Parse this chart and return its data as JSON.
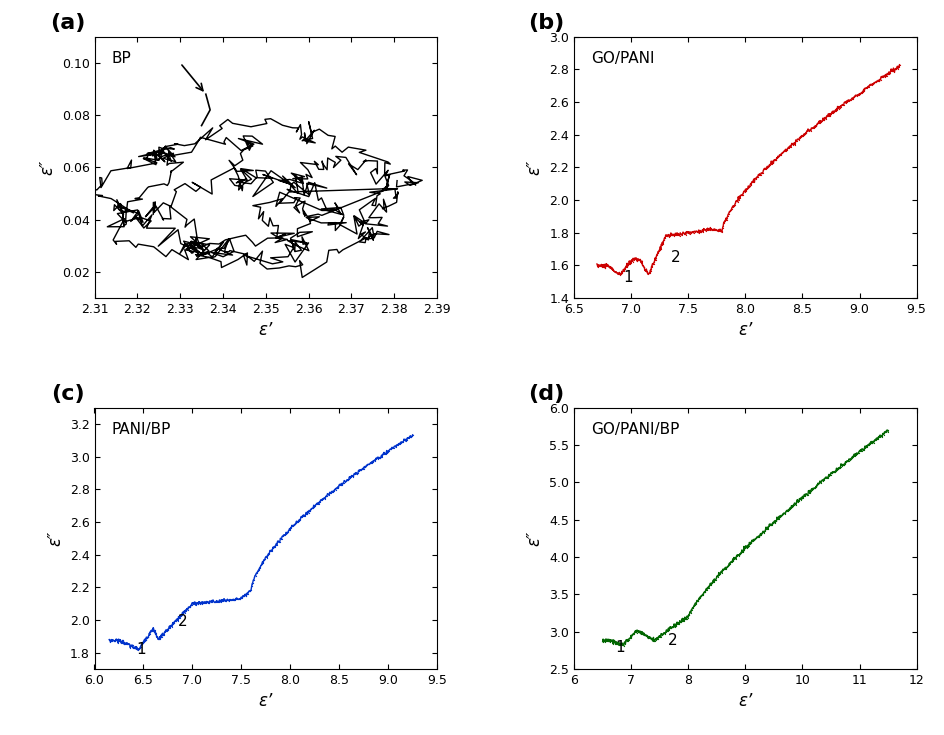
{
  "fig_width": 9.45,
  "fig_height": 7.35,
  "panels": [
    "a",
    "b",
    "c",
    "d"
  ],
  "titles": [
    "BP",
    "GO/PANI",
    "PANI/BP",
    "GO/PANI/BP"
  ],
  "colors": [
    "black",
    "#cc0000",
    "#0033cc",
    "#006600"
  ],
  "xlabel": "ε’",
  "ylabel": "ε″",
  "panel_a": {
    "xlim": [
      2.31,
      2.39
    ],
    "ylim": [
      0.01,
      0.11
    ],
    "xticks": [
      2.31,
      2.32,
      2.33,
      2.34,
      2.35,
      2.36,
      2.37,
      2.38,
      2.39
    ],
    "yticks": [
      0.02,
      0.04,
      0.06,
      0.08,
      0.1
    ]
  },
  "panel_b": {
    "xlim": [
      6.5,
      9.5
    ],
    "ylim": [
      1.4,
      3.0
    ],
    "xticks": [
      6.5,
      7.0,
      7.5,
      8.0,
      8.5,
      9.0,
      9.5
    ],
    "yticks": [
      1.4,
      1.6,
      1.8,
      2.0,
      2.2,
      2.4,
      2.6,
      2.8,
      3.0
    ]
  },
  "panel_c": {
    "xlim": [
      6.0,
      9.5
    ],
    "ylim": [
      1.7,
      3.3
    ],
    "xticks": [
      6.0,
      6.5,
      7.0,
      7.5,
      8.0,
      8.5,
      9.0,
      9.5
    ],
    "yticks": [
      1.8,
      2.0,
      2.2,
      2.4,
      2.6,
      2.8,
      3.0,
      3.2
    ]
  },
  "panel_d": {
    "xlim": [
      6.0,
      12.0
    ],
    "ylim": [
      2.5,
      6.0
    ],
    "xticks": [
      6,
      7,
      8,
      9,
      10,
      11,
      12
    ],
    "yticks": [
      2.5,
      3.0,
      3.5,
      4.0,
      4.5,
      5.0,
      5.5,
      6.0
    ]
  }
}
